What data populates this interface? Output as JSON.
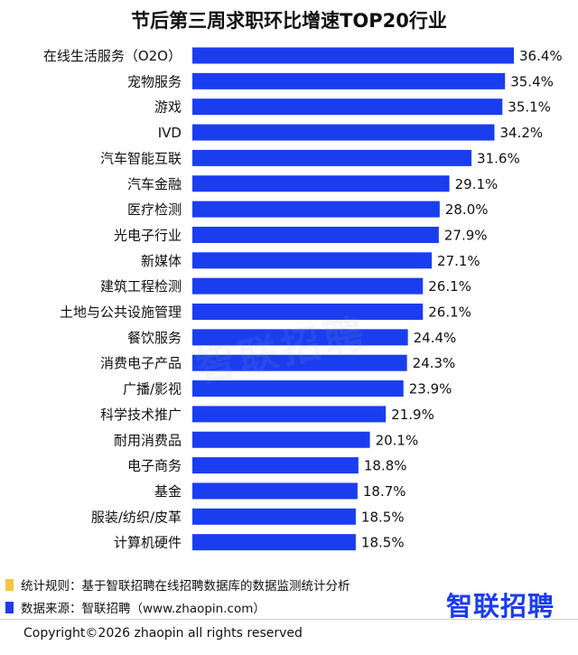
{
  "chart_data": {
    "type": "bar",
    "orientation": "horizontal",
    "title": "节后第三周求职环比增速TOP20行业",
    "categories": [
      "在线生活服务（O2O）",
      "宠物服务",
      "游戏",
      "IVD",
      "汽车智能互联",
      "汽车金融",
      "医疗检测",
      "光电子行业",
      "新媒体",
      "建筑工程检测",
      "土地与公共设施管理",
      "餐饮服务",
      "消费电子产品",
      "广播/影视",
      "科学技术推广",
      "耐用消费品",
      "电子商务",
      "基金",
      "服装/纺织/皮革",
      "计算机硬件"
    ],
    "values": [
      36.4,
      35.4,
      35.1,
      34.2,
      31.6,
      29.1,
      28.0,
      27.9,
      27.1,
      26.1,
      26.1,
      24.4,
      24.3,
      23.9,
      21.9,
      20.1,
      18.8,
      18.7,
      18.5,
      18.5
    ],
    "value_labels": [
      "36.4%",
      "35.4%",
      "35.1%",
      "34.2%",
      "31.6%",
      "29.1%",
      "28.0%",
      "27.9%",
      "27.1%",
      "26.1%",
      "26.1%",
      "24.4%",
      "24.3%",
      "23.9%",
      "21.9%",
      "20.1%",
      "18.8%",
      "18.7%",
      "18.5%",
      "18.5%"
    ],
    "bar_color": "#1a3df0",
    "grid": false,
    "legend": "none"
  },
  "watermark": "智联招聘",
  "notes": {
    "rule": "统计规则：基于智联招聘在线招聘数据库的数据监测统计分析",
    "source": "数据来源：智联招聘（www.zhaopin.com）",
    "rule_color": "#f5c443",
    "source_color": "#1a3df0"
  },
  "brand": "智联招聘",
  "copyright": "Copyright©2026 zhaopin all rights reserved"
}
